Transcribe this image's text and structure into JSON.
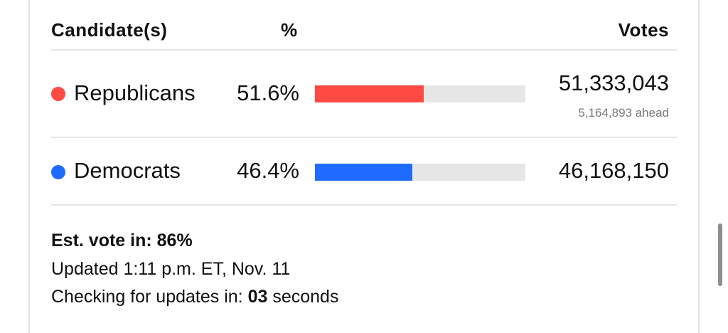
{
  "table": {
    "headers": [
      "Candidate(s)",
      "%",
      "Votes"
    ],
    "rows": [
      {
        "name": "Republicans",
        "color": "#ff4a43",
        "percent": 51.6,
        "percent_label": "51.6%",
        "votes": "51,333,043",
        "note": "5,164,893 ahead"
      },
      {
        "name": "Democrats",
        "color": "#1f6bff",
        "percent": 46.4,
        "percent_label": "46.4%",
        "votes": "46,168,150"
      }
    ]
  },
  "footer": {
    "est_vote": "Est. vote in: 86%",
    "updated": "Updated 1:11 p.m. ET, Nov. 11",
    "checking_prefix": "Checking for updates in:",
    "countdown": "03",
    "checking_suffix": "seconds"
  }
}
